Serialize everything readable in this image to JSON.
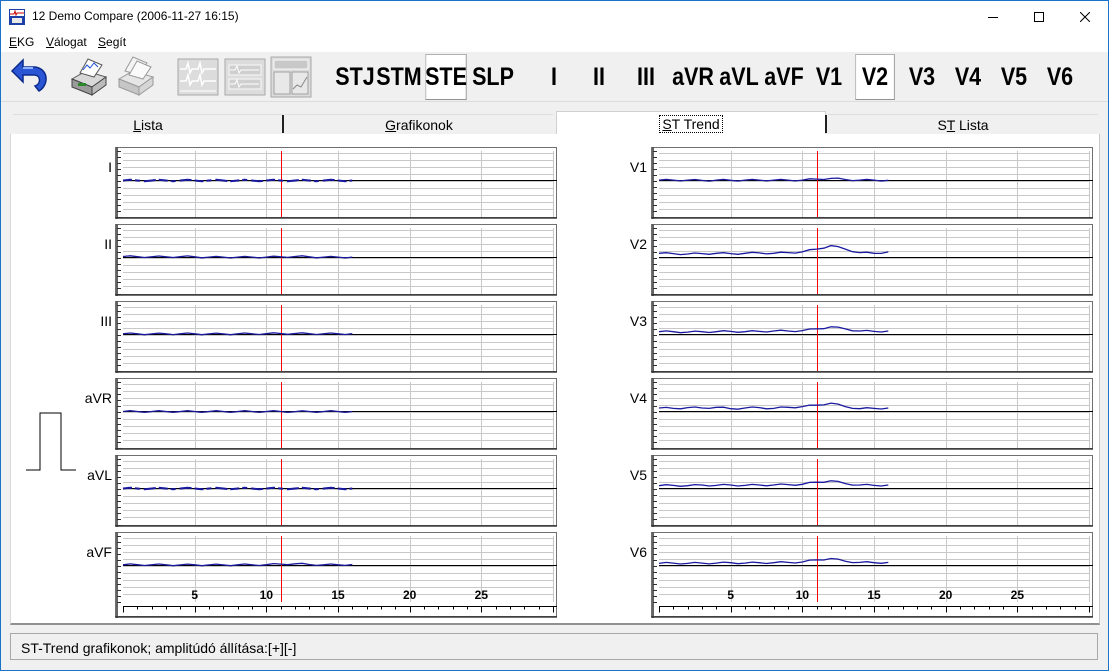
{
  "window": {
    "title": "12 Demo Compare (2006-11-27 16:15)",
    "minimize_icon": "minimize-icon",
    "maximize_icon": "maximize-icon",
    "close_icon": "close-icon"
  },
  "menu": {
    "items": [
      {
        "label": "EKG",
        "accel": "E"
      },
      {
        "label": "Válogat",
        "accel": "V"
      },
      {
        "label": "Segít",
        "accel": "S"
      }
    ]
  },
  "toolbar": {
    "icons": [
      "back-arrow-icon",
      "print-icon",
      "print-all-icon",
      "ecg-view-1-icon",
      "ecg-view-2-icon",
      "ecg-view-3-icon"
    ],
    "modes": [
      "STJ",
      "STM",
      "STE",
      "SLP"
    ],
    "selected_mode": "STE",
    "leads": [
      "I",
      "II",
      "III",
      "aVR",
      "aVL",
      "aVF",
      "V1",
      "V2",
      "V3",
      "V4",
      "V5",
      "V6"
    ],
    "selected_lead": "V2"
  },
  "tabs": [
    {
      "label": "Lista",
      "accel": "L",
      "active": false
    },
    {
      "label": "Grafikonok",
      "accel": "G",
      "active": false
    },
    {
      "label": "ST Trend",
      "accel": "S",
      "active": true
    },
    {
      "label": "ST Lista",
      "accel": "T",
      "active": false
    }
  ],
  "chart_data": {
    "type": "line",
    "x_ticks": [
      5,
      10,
      15,
      20,
      25
    ],
    "xlim": [
      0,
      30
    ],
    "marker_x": 11,
    "marker_color": "#ff0000",
    "trace_color": "#1a1aa0",
    "leads_left": [
      "I",
      "II",
      "III",
      "aVR",
      "aVL",
      "aVF"
    ],
    "leads_right": [
      "V1",
      "V2",
      "V3",
      "V4",
      "V5",
      "V6"
    ],
    "series": [
      {
        "name": "I",
        "style": "dashed",
        "x_end": 16,
        "y": [
          0,
          0,
          0,
          0,
          0,
          0,
          0,
          0,
          0,
          0,
          0,
          0,
          0,
          0,
          0,
          0,
          0
        ]
      },
      {
        "name": "II",
        "style": "solid",
        "x_end": 16,
        "y": [
          0.15,
          0.12,
          0.1,
          0.1,
          0.12,
          0.1,
          0.05,
          0.05,
          0.05,
          0.05,
          0.05,
          0.1,
          0.15,
          0.1,
          0.05,
          0.05,
          0.05
        ]
      },
      {
        "name": "III",
        "style": "solid",
        "x_end": 16,
        "y": [
          0.1,
          0.1,
          0.08,
          0.1,
          0.1,
          0.1,
          0.08,
          0.08,
          0.1,
          0.1,
          0.12,
          0.15,
          0.15,
          0.12,
          0.1,
          0.1,
          0.12
        ]
      },
      {
        "name": "aVR",
        "style": "solid",
        "x_end": 16,
        "y": [
          0,
          0,
          0,
          0,
          0,
          0,
          0,
          0,
          0,
          0,
          0,
          0,
          -0.02,
          0,
          0,
          0,
          0
        ]
      },
      {
        "name": "aVL",
        "style": "dashed",
        "x_end": 16,
        "y": [
          0,
          0,
          0,
          0,
          0,
          0,
          0,
          0,
          0,
          0,
          0,
          0,
          0,
          0,
          0,
          0,
          0
        ]
      },
      {
        "name": "aVF",
        "style": "solid",
        "x_end": 16,
        "y": [
          0.1,
          0.12,
          0.1,
          0.1,
          0.08,
          0.1,
          0.08,
          0.08,
          0.1,
          0.1,
          0.12,
          0.2,
          0.25,
          0.15,
          0.1,
          0.1,
          0.15
        ]
      },
      {
        "name": "V1",
        "style": "solid",
        "x_end": 16,
        "y": [
          0.05,
          0.05,
          0.05,
          0.02,
          0.05,
          0.03,
          0.05,
          0.05,
          0.05,
          0.05,
          0.05,
          0.2,
          0.3,
          0.15,
          0.05,
          0.05,
          0.03
        ]
      },
      {
        "name": "V2",
        "style": "solid",
        "x_end": 16,
        "y": [
          0.6,
          0.55,
          0.5,
          0.55,
          0.6,
          0.55,
          0.6,
          0.65,
          0.6,
          0.7,
          0.8,
          1.2,
          1.7,
          1.2,
          0.7,
          0.6,
          0.8
        ]
      },
      {
        "name": "V3",
        "style": "solid",
        "x_end": 16,
        "y": [
          0.4,
          0.4,
          0.35,
          0.4,
          0.4,
          0.45,
          0.4,
          0.45,
          0.5,
          0.5,
          0.55,
          0.8,
          1.1,
          0.8,
          0.5,
          0.45,
          0.5
        ]
      },
      {
        "name": "V4",
        "style": "solid",
        "x_end": 16,
        "y": [
          0.5,
          0.45,
          0.55,
          0.5,
          0.6,
          0.4,
          0.5,
          0.55,
          0.45,
          0.6,
          0.7,
          0.9,
          1.2,
          0.7,
          0.4,
          0.45,
          0.5
        ]
      },
      {
        "name": "V5",
        "style": "solid",
        "x_end": 16,
        "y": [
          0.4,
          0.45,
          0.4,
          0.5,
          0.45,
          0.5,
          0.45,
          0.5,
          0.5,
          0.55,
          0.6,
          0.9,
          1.1,
          0.7,
          0.5,
          0.45,
          0.5
        ]
      },
      {
        "name": "V6",
        "style": "solid",
        "x_end": 16,
        "y": [
          0.3,
          0.35,
          0.3,
          0.35,
          0.35,
          0.4,
          0.35,
          0.4,
          0.4,
          0.45,
          0.5,
          0.8,
          1.0,
          0.6,
          0.45,
          0.4,
          0.45
        ]
      }
    ]
  },
  "statusbar": {
    "text": "ST-Trend grafikonok;   amplitúdó állítása:[+][-]"
  }
}
